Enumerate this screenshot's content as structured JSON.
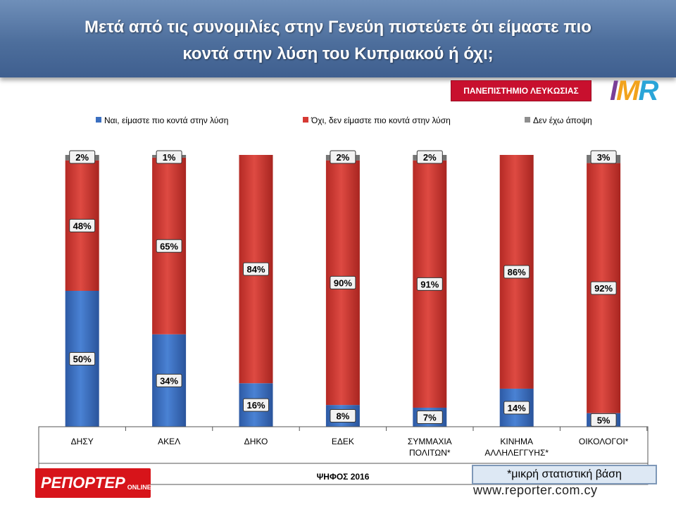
{
  "header": {
    "title_line1": "Μετά από τις συνομιλίες στην Γενεύη πιστεύετε ότι είμαστε πιο",
    "title_line2": "κοντά στην λύση του Κυπριακού ή όχι;"
  },
  "badges": {
    "university": "ΠΑΝΕΠΙΣΤΗΜΙΟ ΛΕΥΚΩΣΙΑΣ",
    "imr_logo": "IMR"
  },
  "footer": {
    "note": "*μικρή στατιστική βάση",
    "url": "www.reporter.com.cy",
    "reporter_logo": "ΡΕΠΟΡΤΕΡ",
    "reporter_logo_sub": "ONLINE"
  },
  "colors": {
    "yes": "#3b6fc0",
    "no": "#d63a34",
    "noopinion": "#8e8e8e"
  },
  "chart_data": {
    "type": "bar",
    "stacked": true,
    "xlabel": "ΨΗΦΟΣ 2016",
    "categories": [
      "ΔΗΣΥ",
      "ΑΚΕΛ",
      "ΔΗΚΟ",
      "ΕΔΕΚ",
      "ΣΥΜΜΑΧΙΑ ΠΟΛΙΤΩΝ*",
      "ΚΙΝΗΜΑ ΑΛΛΗΛΕΓΓΥΗΣ*",
      "ΟΙΚΟΛΟΓΟΙ*"
    ],
    "category_lines": [
      [
        "ΔΗΣΥ"
      ],
      [
        "ΑΚΕΛ"
      ],
      [
        "ΔΗΚΟ"
      ],
      [
        "ΕΔΕΚ"
      ],
      [
        "ΣΥΜΜΑΧΙΑ",
        "ΠΟΛΙΤΩΝ*"
      ],
      [
        "ΚΙΝΗΜΑ",
        "ΑΛΛΗΛΕΓΓΥΗΣ*"
      ],
      [
        "ΟΙΚΟΛΟΓΟΙ*"
      ]
    ],
    "series": [
      {
        "name": "Ναι, είμαστε πιο κοντά στην λύση",
        "values": [
          50,
          34,
          16,
          8,
          7,
          14,
          5
        ],
        "labels": [
          "50%",
          "34%",
          "16%",
          "8%",
          "7%",
          "14%",
          "5%"
        ]
      },
      {
        "name": "Όχι, δεν είμαστε πιο κοντά στην λύση",
        "values": [
          48,
          65,
          84,
          90,
          91,
          86,
          92
        ],
        "labels": [
          "48%",
          "65%",
          "84%",
          "90%",
          "91%",
          "86%",
          "92%"
        ]
      },
      {
        "name": "Δεν έχω άποψη",
        "values": [
          2,
          1,
          0,
          2,
          2,
          0,
          3
        ],
        "labels": [
          "2%",
          "1%",
          "",
          "2%",
          "2%",
          "",
          "3%"
        ]
      }
    ],
    "ylim": [
      0,
      100
    ],
    "legend_position": "top",
    "grid": false
  }
}
